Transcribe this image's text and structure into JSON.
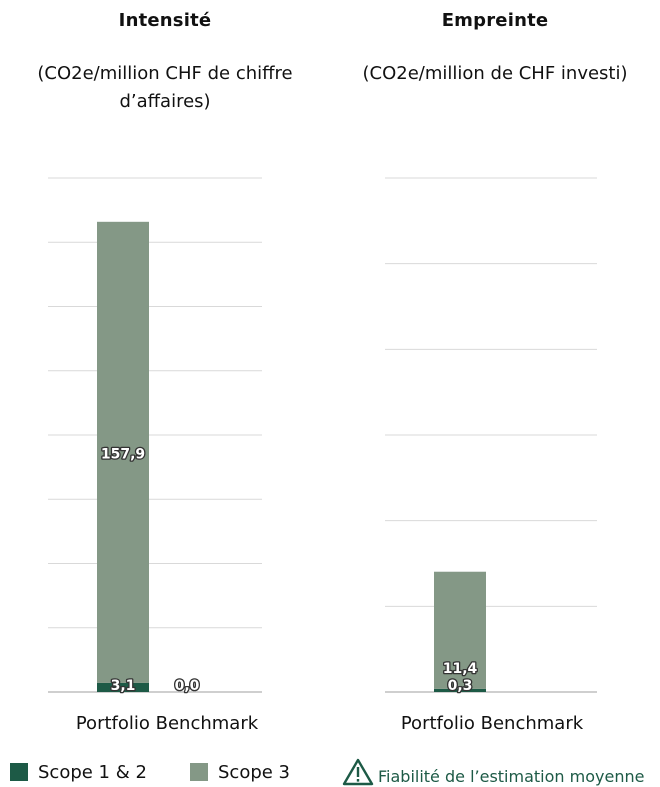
{
  "chart_data": [
    {
      "type": "bar",
      "title": "Intensité",
      "subtitle_line1": "(CO2e/million CHF de chiffre",
      "subtitle_line2": "d’affaires)",
      "xlabel": "Portfolio Benchmark",
      "categories": [
        "Portfolio",
        "Benchmark"
      ],
      "series": [
        {
          "name": "Scope 1 & 2",
          "values": [
            3.1,
            0.0
          ],
          "labels": [
            "3,1",
            "0,0"
          ]
        },
        {
          "name": "Scope 3",
          "values": [
            157.9,
            0.0
          ],
          "labels": [
            "157,9",
            ""
          ]
        }
      ],
      "ylim": [
        0,
        176
      ],
      "grid": true,
      "gridlines": 8
    },
    {
      "type": "bar",
      "title": "Empreinte",
      "subtitle_line1": "(CO2e/million de CHF investi)",
      "subtitle_line2": "",
      "xlabel": "Portfolio Benchmark",
      "categories": [
        "Portfolio",
        "Benchmark"
      ],
      "series": [
        {
          "name": "Scope 1 & 2",
          "values": [
            0.3,
            0.0
          ],
          "labels": [
            "0,3",
            ""
          ]
        },
        {
          "name": "Scope 3",
          "values": [
            11.4,
            0.0
          ],
          "labels": [
            "11,4",
            ""
          ]
        }
      ],
      "ylim": [
        0,
        50
      ],
      "grid": true,
      "gridlines": 6
    }
  ],
  "legend": {
    "items": [
      {
        "label": "Scope 1 & 2",
        "color": "#1d5a46"
      },
      {
        "label": "Scope 3",
        "color": "#849886"
      }
    ],
    "placement": "bottom"
  },
  "reliability": {
    "label": "Fiabilité de l’estimation moyenne",
    "icon": "warning-triangle-icon",
    "color": "#1d5a46"
  },
  "colors": {
    "scope12": "#1d5a46",
    "scope3": "#849886",
    "grid": "#d9d9d9",
    "axis": "#bfbfbf"
  }
}
